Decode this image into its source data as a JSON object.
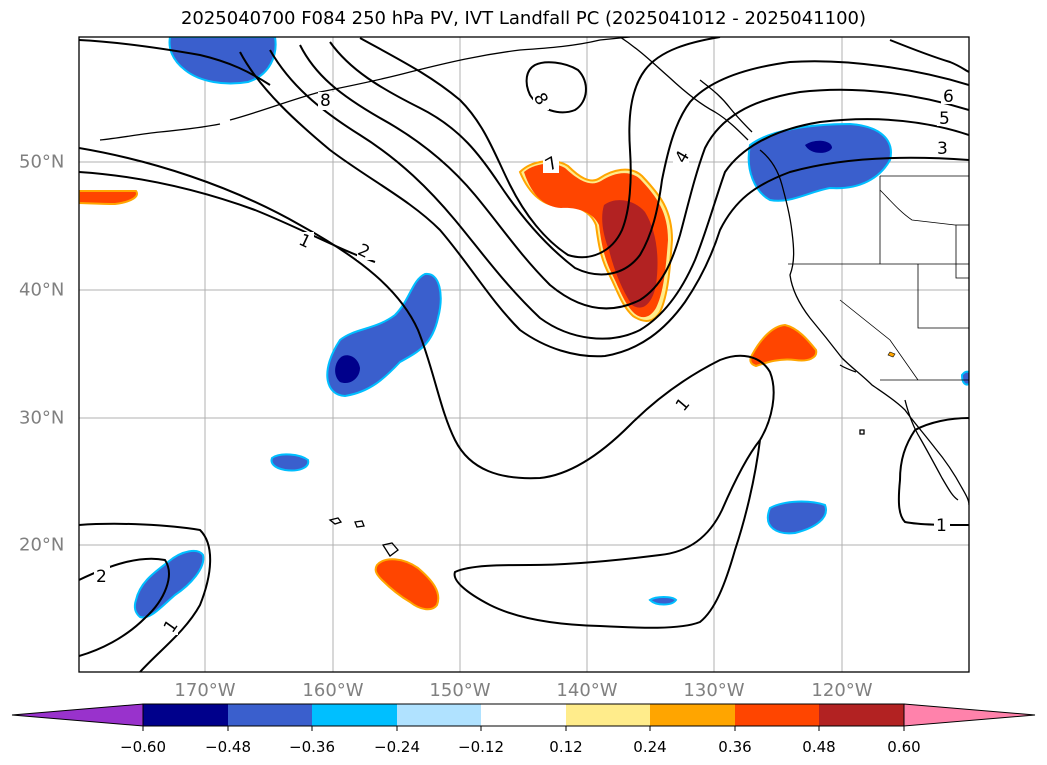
{
  "title": "2025040700 F084 250 hPa PV, IVT Landfall PC (2025041012 - 2025041100)",
  "longitude_labels": [
    "170°W",
    "160°W",
    "150°W",
    "140°W",
    "130°W",
    "120°W"
  ],
  "latitude_labels": [
    "50°N",
    "40°N",
    "30°N",
    "20°N"
  ],
  "contour_labels": [
    "1",
    "2",
    "1",
    "2",
    "3",
    "4",
    "5",
    "6",
    "7",
    "8",
    "8",
    "1",
    "1",
    "1"
  ],
  "colorbar": {
    "colors": [
      "#9932cc",
      "#00008b",
      "#3a5fcd",
      "#00bfff",
      "#b0e2ff",
      "#ffffff",
      "#ffec8b",
      "#ffa500",
      "#ff4500",
      "#b22222",
      "#ff82ab"
    ],
    "tick_labels": [
      "−0.60",
      "−0.48",
      "−0.36",
      "−0.24",
      "−0.12",
      "0.12",
      "0.24",
      "0.36",
      "0.48",
      "0.60"
    ]
  }
}
